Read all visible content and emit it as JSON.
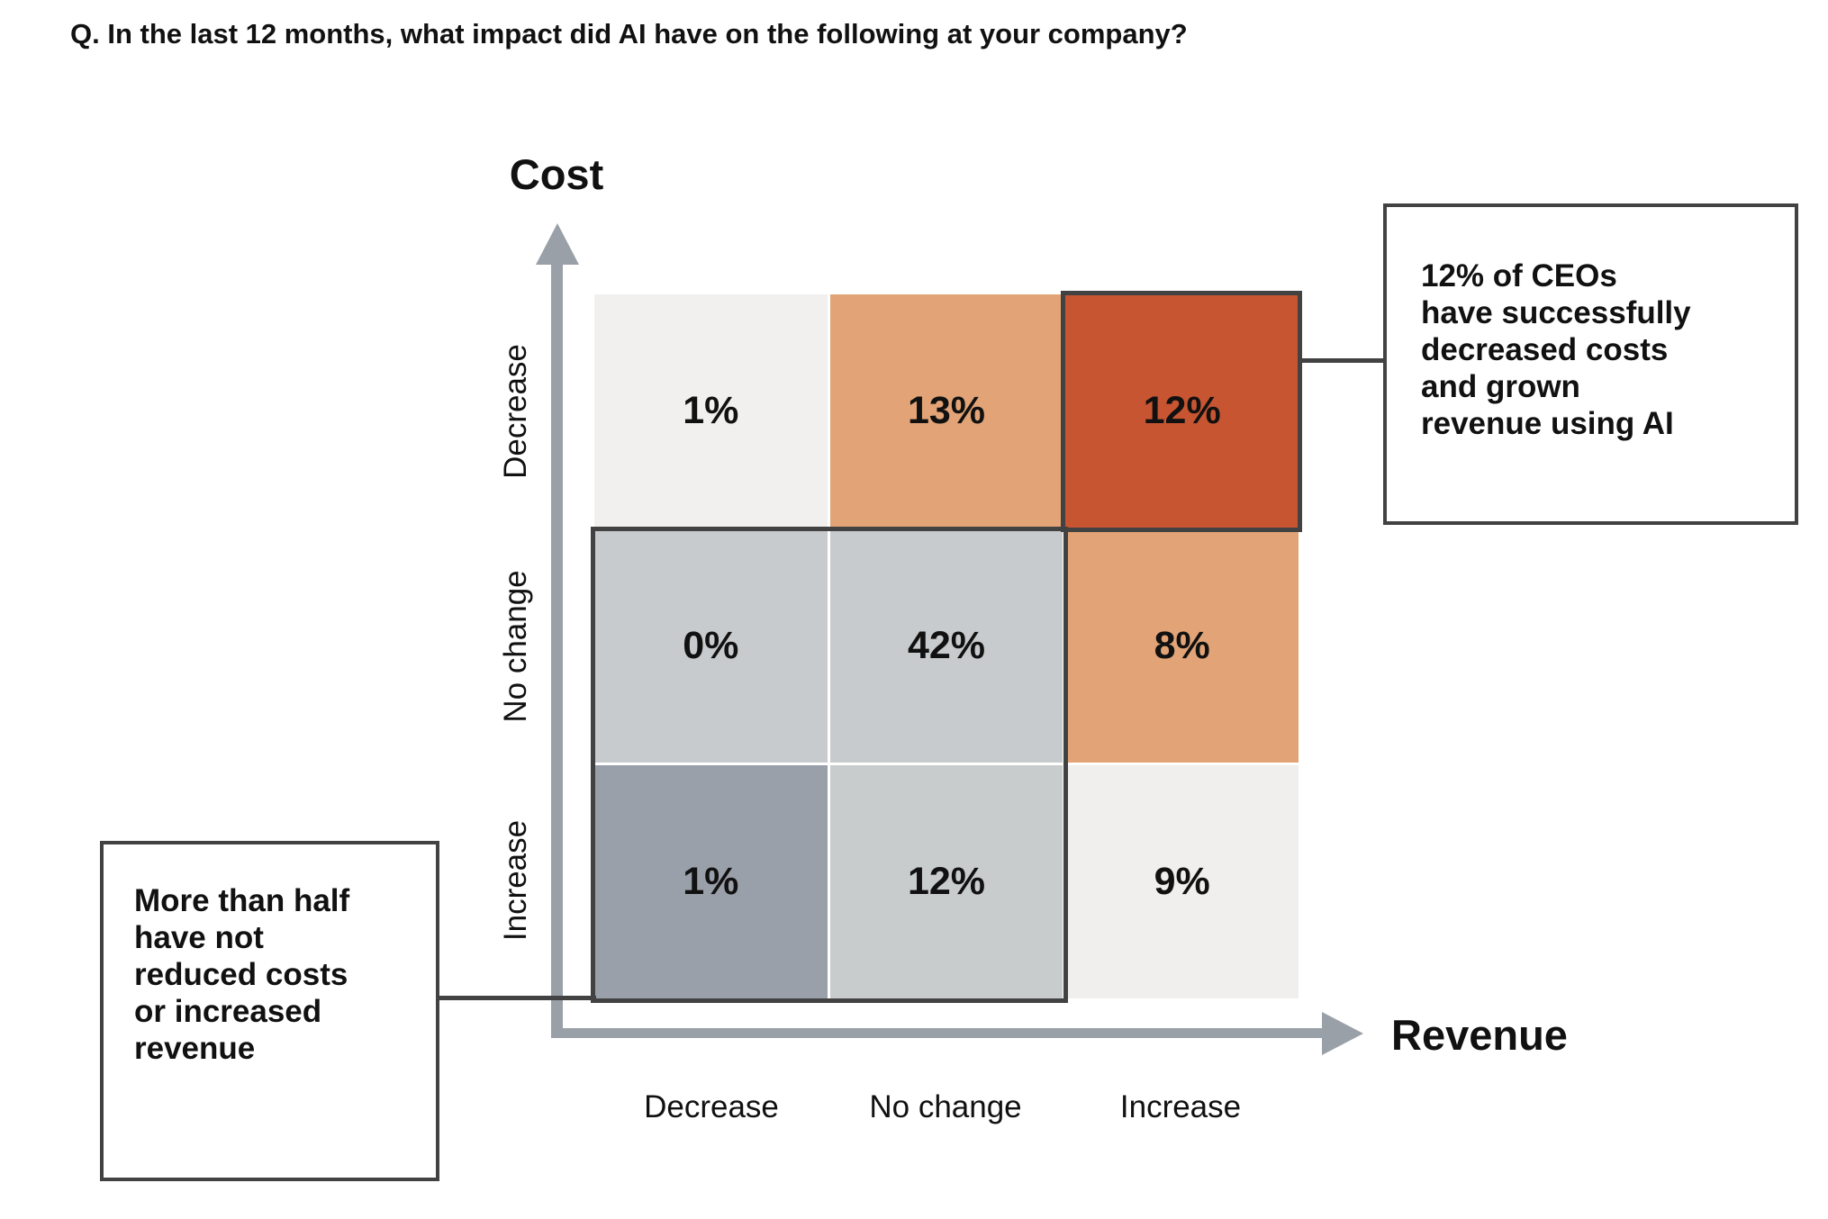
{
  "title": "Q. In the last 12 months, what impact did AI have on the following at your company?",
  "chart_data": {
    "type": "heatmap",
    "unit": "%",
    "x_axis": {
      "label": "Revenue",
      "categories": [
        "Decrease",
        "No change",
        "Increase"
      ]
    },
    "y_axis": {
      "label": "Cost",
      "categories": [
        "Decrease",
        "No change",
        "Increase"
      ],
      "order": "top-to-bottom"
    },
    "values": [
      [
        1,
        13,
        12
      ],
      [
        0,
        42,
        8
      ],
      [
        1,
        12,
        9
      ]
    ],
    "cells": [
      {
        "row": "Decrease",
        "col": "Decrease",
        "value": 1,
        "label": "1%",
        "color": "#f1f0ee"
      },
      {
        "row": "Decrease",
        "col": "No change",
        "value": 13,
        "label": "13%",
        "color": "#e2a476"
      },
      {
        "row": "Decrease",
        "col": "Increase",
        "value": 12,
        "label": "12%",
        "color": "#c85532",
        "outlined": true
      },
      {
        "row": "No change",
        "col": "Decrease",
        "value": 0,
        "label": "0%",
        "color": "#c8cbcd"
      },
      {
        "row": "No change",
        "col": "No change",
        "value": 42,
        "label": "42%",
        "color": "#c8cbcd"
      },
      {
        "row": "No change",
        "col": "Increase",
        "value": 8,
        "label": "8%",
        "color": "#e2a476"
      },
      {
        "row": "Increase",
        "col": "Decrease",
        "value": 1,
        "label": "1%",
        "color": "#9aa0a9"
      },
      {
        "row": "Increase",
        "col": "No change",
        "value": 12,
        "label": "12%",
        "color": "#c9cccd"
      },
      {
        "row": "Increase",
        "col": "Increase",
        "value": 9,
        "label": "9%",
        "color": "#f0efed"
      }
    ],
    "highlighted_region": "2x2 block of No change / Decrease-cost rows with Decrease / No change revenue columns outlined in dark gray; top-right cell (cost Decrease, revenue Increase) outlined in dark gray",
    "legend": "none",
    "grid": "white 3px separators between cells"
  },
  "callouts": {
    "right": {
      "text": "12% of CEOs have successfully decreased costs and grown revenue using AI",
      "lines": [
        "12% of CEOs",
        "have successfully",
        "decreased costs",
        "and grown",
        "revenue using AI"
      ]
    },
    "left": {
      "text": "More than half have not reduced costs or increased revenue",
      "lines": [
        "More than half",
        "have not",
        "reduced costs",
        "or increased",
        "revenue"
      ]
    }
  },
  "colors": {
    "axis_gray": "#9aa0a8",
    "outline_dark": "#424242",
    "text": "#111111",
    "background": "#ffffff",
    "accent_orange": "#e2a476",
    "accent_burnt_orange": "#c85532"
  }
}
